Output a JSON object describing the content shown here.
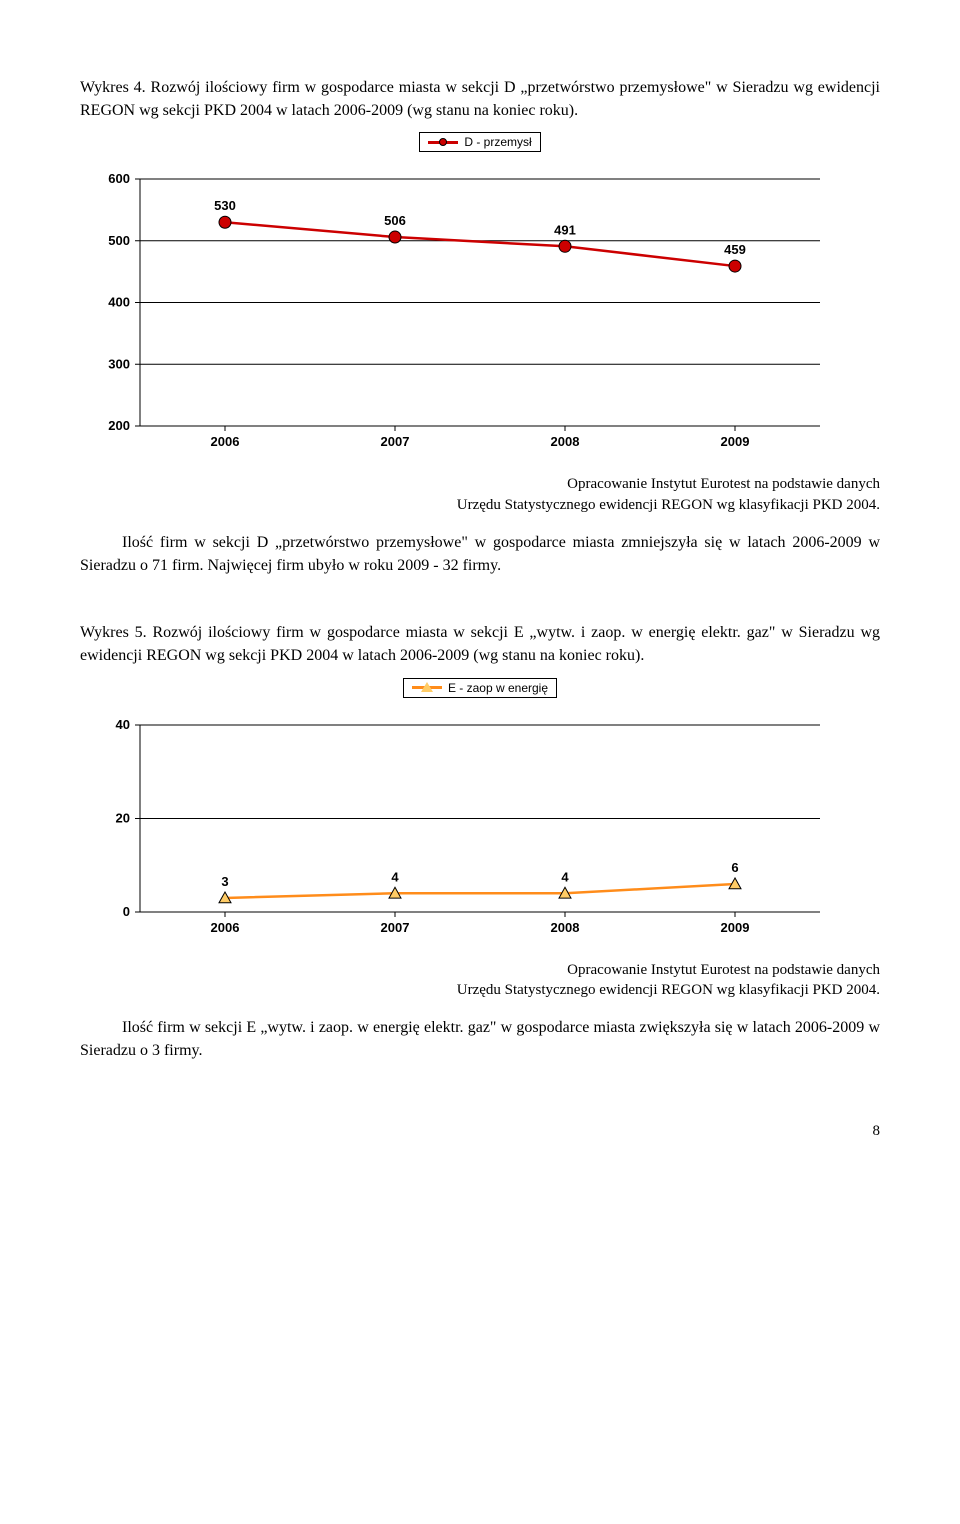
{
  "paragraphs": {
    "intro1": "Wykres 4. Rozwój ilościowy firm w gospodarce miasta w sekcji D „przetwórstwo przemysłowe\" w Sieradzu wg ewidencji REGON wg sekcji PKD 2004 w latach 2006-2009 (wg stanu na koniec roku).",
    "mid1a": "Ilość firm w sekcji D „przetwórstwo przemysłowe\" w gospodarce miasta zmniejszyła się w latach 2006-2009 w Sieradzu o 71 firm. Najwięcej firm ubyło w roku 2009  - 32 firmy.",
    "intro2": "Wykres 5. Rozwój ilościowy firm w gospodarce miasta w sekcji E „wytw. i zaop. w energię elektr. gaz\" w Sieradzu wg ewidencji REGON wg sekcji PKD 2004 w latach 2006-2009 (wg stanu na koniec roku).",
    "mid2a": "Ilość firm w sekcji E „wytw. i zaop. w energię elektr. gaz\" w gospodarce miasta zwiększyła się w latach 2006-2009 w Sieradzu o 3 firmy."
  },
  "attribution": {
    "line1": "Opracowanie Instytut Eurotest na podstawie danych",
    "line2": "Urzędu Statystycznego  ewidencji REGON wg klasyfikacji PKD 2004."
  },
  "chart1": {
    "type": "line",
    "legend_label": "D - przemysł",
    "categories": [
      "2006",
      "2007",
      "2008",
      "2009"
    ],
    "values": [
      530,
      506,
      491,
      459
    ],
    "ymin": 200,
    "ymax": 600,
    "ytick_step": 100,
    "line_color": "#cc0000",
    "line_width": 2.5,
    "marker_fill": "#cc0000",
    "marker_stroke": "#000000",
    "marker_radius": 6,
    "gridline_color": "#000000",
    "axis_color": "#000000",
    "background_color": "#ffffff",
    "label_fontsize": 13,
    "label_weight": "bold"
  },
  "chart2": {
    "type": "line",
    "legend_label": "E - zaop w energię",
    "categories": [
      "2006",
      "2007",
      "2008",
      "2009"
    ],
    "values": [
      3,
      4,
      4,
      6
    ],
    "ymin": 0,
    "ymax": 40,
    "ytick_step": 20,
    "line_color": "#ff8c1a",
    "line_width": 2.5,
    "marker_fill": "#ffcc66",
    "marker_stroke": "#000000",
    "marker_size": 12,
    "gridline_color": "#000000",
    "axis_color": "#000000",
    "background_color": "#ffffff",
    "label_fontsize": 13,
    "label_weight": "bold"
  },
  "page_number": "8"
}
